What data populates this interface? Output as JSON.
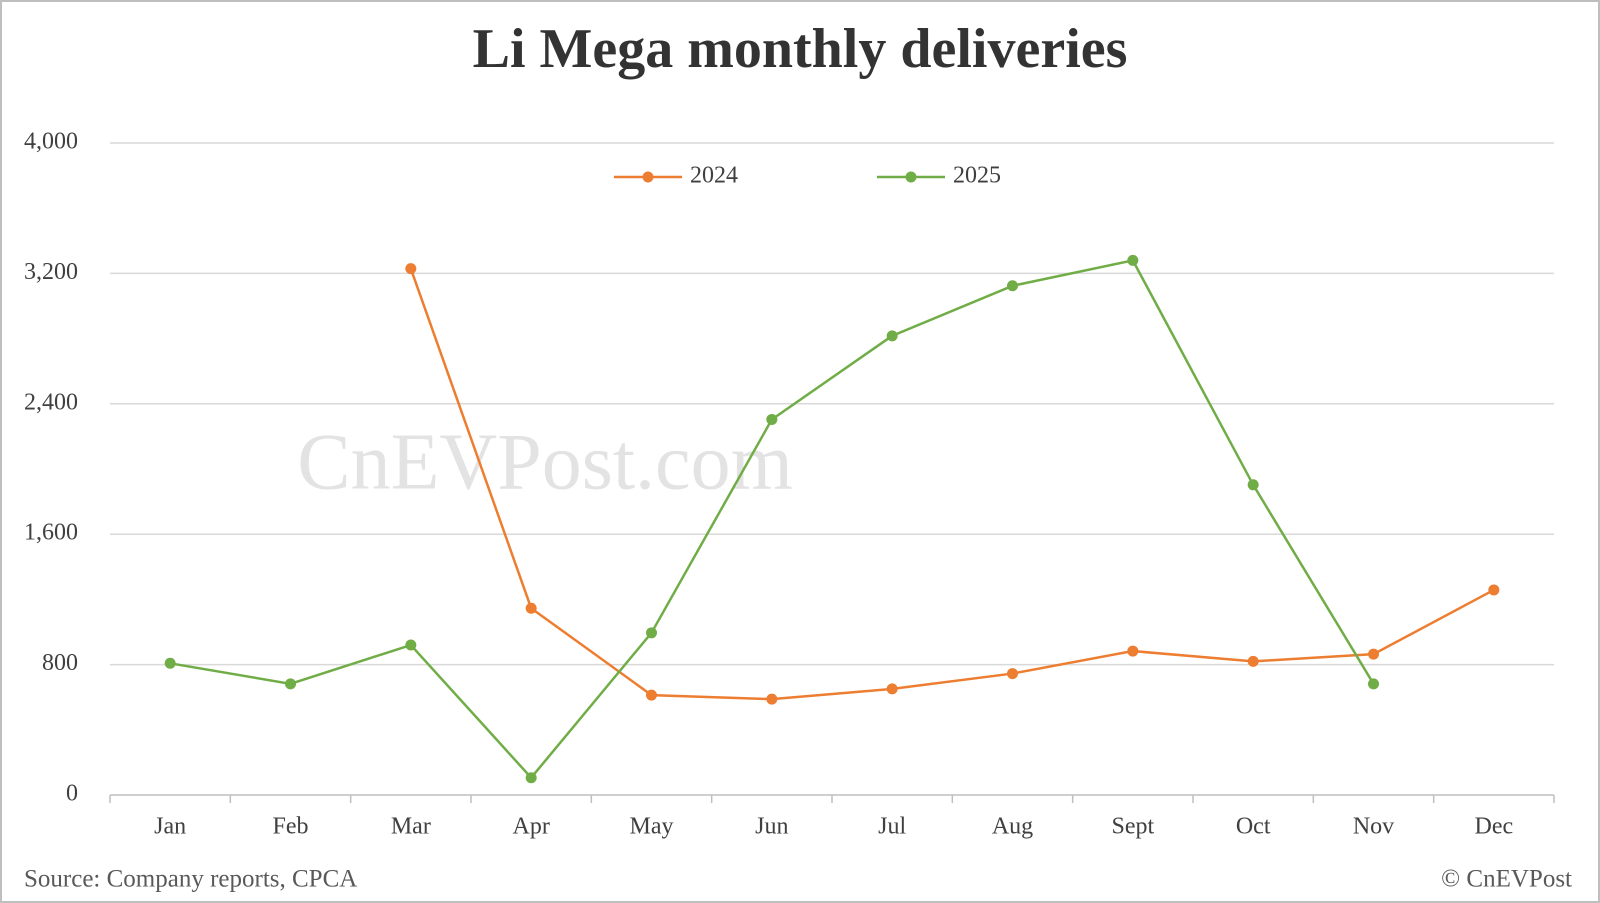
{
  "chart_data": {
    "type": "line",
    "title": "Li Mega monthly deliveries",
    "watermark": "CnEVPost.com",
    "source": "Source: Company reports, CPCA",
    "copyright": "© CnEVPost",
    "categories": [
      "Jan",
      "Feb",
      "Mar",
      "Apr",
      "May",
      "Jun",
      "Jul",
      "Aug",
      "Sept",
      "Oct",
      "Nov",
      "Dec"
    ],
    "series": [
      {
        "name": "2024",
        "color": "#ed7d31",
        "values": [
          null,
          null,
          3229,
          1146,
          613,
          588,
          651,
          745,
          883,
          820,
          864,
          1258
        ]
      },
      {
        "name": "2025",
        "color": "#70ad47",
        "values": [
          808,
          682,
          920,
          106,
          995,
          2304,
          2817,
          3124,
          3280,
          1903,
          682,
          null
        ]
      }
    ],
    "ylim": [
      0,
      4000
    ],
    "yticks": [
      0,
      800,
      {
        "value": 1600,
        "label": "1,600"
      },
      {
        "value": 2400,
        "label": "2,400"
      },
      {
        "value": 3200,
        "label": "3,200"
      },
      {
        "value": 4000,
        "label": "4,000"
      }
    ],
    "grid": true,
    "legend": "top"
  }
}
